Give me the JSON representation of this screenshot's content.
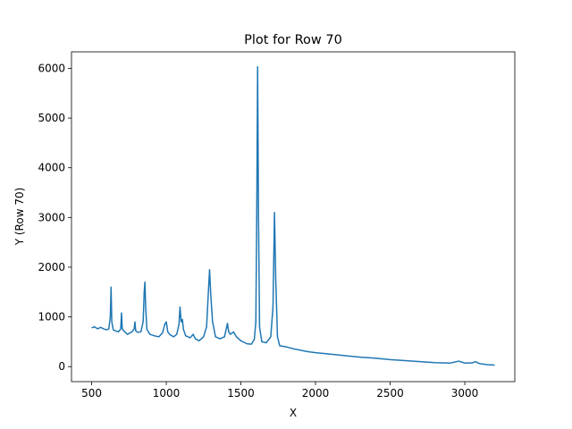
{
  "chart_data": {
    "type": "line",
    "title": "Plot for Row 70",
    "x_label": "X",
    "y_label": "Y (Row 70)",
    "color": "#1f77b4",
    "x": [
      500,
      520,
      540,
      560,
      580,
      600,
      615,
      625,
      630,
      635,
      645,
      660,
      680,
      695,
      700,
      705,
      715,
      740,
      770,
      785,
      790,
      795,
      810,
      830,
      845,
      852,
      857,
      862,
      870,
      890,
      920,
      950,
      975,
      990,
      1000,
      1010,
      1025,
      1050,
      1070,
      1085,
      1092,
      1100,
      1108,
      1115,
      1130,
      1160,
      1180,
      1195,
      1220,
      1250,
      1270,
      1282,
      1290,
      1297,
      1310,
      1330,
      1360,
      1390,
      1405,
      1410,
      1418,
      1430,
      1450,
      1470,
      1500,
      1540,
      1570,
      1590,
      1600,
      1606,
      1612,
      1618,
      1625,
      1640,
      1670,
      1700,
      1715,
      1725,
      1733,
      1745,
      1760,
      1800,
      1850,
      1900,
      1950,
      2000,
      2100,
      2200,
      2300,
      2400,
      2500,
      2600,
      2700,
      2800,
      2900,
      2960,
      3000,
      3050,
      3070,
      3100,
      3150,
      3200
    ],
    "values": [
      780,
      800,
      760,
      790,
      760,
      740,
      760,
      1000,
      1600,
      900,
      740,
      720,
      700,
      760,
      1080,
      760,
      720,
      650,
      700,
      760,
      900,
      720,
      690,
      700,
      900,
      1500,
      1700,
      1200,
      750,
      650,
      620,
      600,
      680,
      850,
      900,
      700,
      640,
      600,
      650,
      850,
      1200,
      900,
      950,
      750,
      620,
      580,
      650,
      560,
      520,
      600,
      800,
      1500,
      1950,
      1500,
      900,
      600,
      560,
      600,
      800,
      870,
      700,
      650,
      700,
      600,
      520,
      460,
      450,
      550,
      900,
      3000,
      6030,
      3000,
      800,
      500,
      480,
      600,
      1200,
      3100,
      1800,
      600,
      420,
      400,
      360,
      330,
      300,
      280,
      250,
      220,
      190,
      170,
      140,
      120,
      100,
      80,
      70,
      110,
      70,
      75,
      100,
      60,
      40,
      30
    ],
    "xlim": [
      365,
      3335
    ],
    "ylim": [
      -302,
      6332
    ],
    "xticks": [
      500,
      1000,
      1500,
      2000,
      2500,
      3000
    ],
    "yticks": [
      0,
      1000,
      2000,
      3000,
      4000,
      5000,
      6000
    ]
  }
}
